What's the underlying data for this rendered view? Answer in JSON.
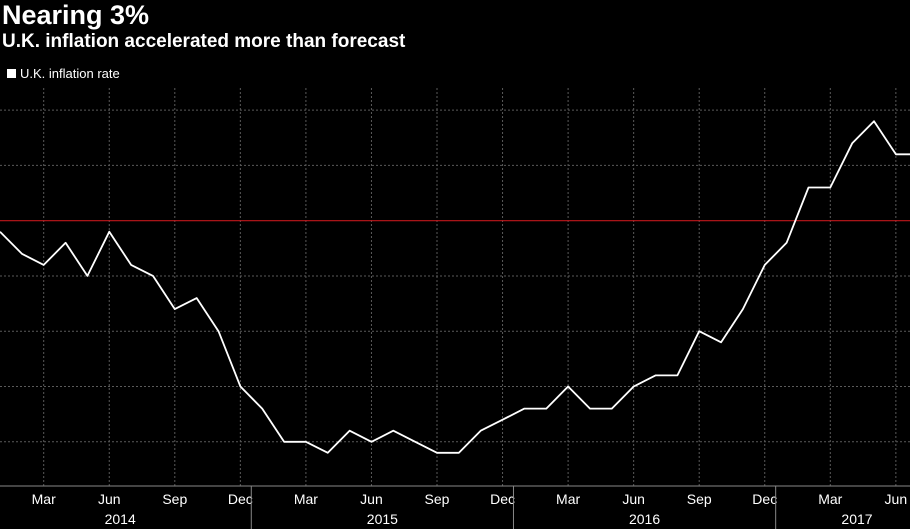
{
  "chart_data": {
    "type": "line",
    "title": "Nearing 3%",
    "subtitle": "U.K. inflation accelerated more than forecast",
    "legend": [
      "U.K. inflation rate"
    ],
    "legend_position": "top-left",
    "x": [
      "2014-01",
      "2014-02",
      "2014-03",
      "2014-04",
      "2014-05",
      "2014-06",
      "2014-07",
      "2014-08",
      "2014-09",
      "2014-10",
      "2014-11",
      "2014-12",
      "2015-01",
      "2015-02",
      "2015-03",
      "2015-04",
      "2015-05",
      "2015-06",
      "2015-07",
      "2015-08",
      "2015-09",
      "2015-10",
      "2015-11",
      "2015-12",
      "2016-01",
      "2016-02",
      "2016-03",
      "2016-04",
      "2016-05",
      "2016-06",
      "2016-07",
      "2016-08",
      "2016-09",
      "2016-10",
      "2016-11",
      "2016-12",
      "2017-01",
      "2017-02",
      "2017-03",
      "2017-04",
      "2017-05",
      "2017-06",
      "2017-07"
    ],
    "series": [
      {
        "name": "U.K. inflation rate",
        "color": "#ffffff",
        "values": [
          1.9,
          1.7,
          1.6,
          1.8,
          1.5,
          1.9,
          1.6,
          1.5,
          1.2,
          1.3,
          1.0,
          0.5,
          0.3,
          0.0,
          0.0,
          -0.1,
          0.1,
          0.0,
          0.1,
          0.0,
          -0.1,
          -0.1,
          0.1,
          0.2,
          0.3,
          0.3,
          0.5,
          0.3,
          0.3,
          0.5,
          0.6,
          0.6,
          1.0,
          0.9,
          1.2,
          1.6,
          1.8,
          2.3,
          2.3,
          2.7,
          2.9,
          2.6,
          2.6
        ]
      }
    ],
    "reference_line": {
      "y": 2.0,
      "color": "#c0171c"
    },
    "ylim": [
      -0.4,
      3.2
    ],
    "x_tick_labels": [
      "Mar",
      "Jun",
      "Sep",
      "Dec",
      "Mar",
      "Jun",
      "Sep",
      "Dec",
      "Mar",
      "Jun",
      "Sep",
      "Dec",
      "Mar",
      "Jun"
    ],
    "x_year_labels": [
      "2014",
      "2015",
      "2016",
      "2017"
    ],
    "grid": true,
    "background": "#000000",
    "grid_color": "#5a5a5a"
  }
}
